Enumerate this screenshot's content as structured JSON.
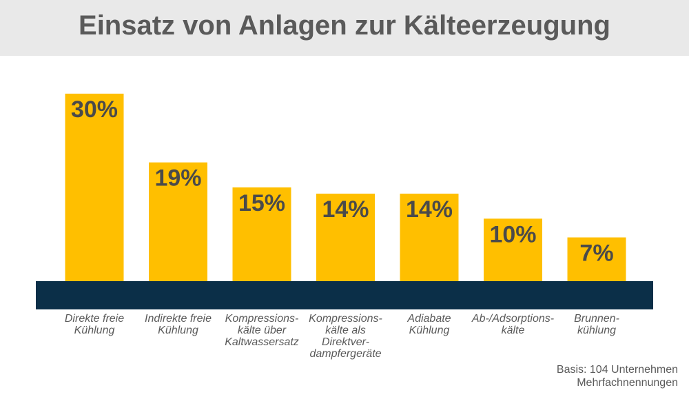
{
  "colors": {
    "bar": "#ffbf00",
    "baseline": "#0b2f48",
    "title_bg": "#e9e9e9",
    "text": "#5a5a5a",
    "value_text": "#4a4a4a"
  },
  "chart_data": {
    "type": "bar",
    "title": "Einsatz von Anlagen zur Kälteerzeugung",
    "categories": [
      [
        "Direkte freie",
        "Kühlung"
      ],
      [
        "Indirekte freie",
        "Kühlung"
      ],
      [
        "Kompressions-",
        "kälte über",
        "Kaltwassersatz"
      ],
      [
        "Kompressions-",
        "kälte als",
        "Direktver-",
        "dampfergeräte"
      ],
      [
        "Adiabate",
        "Kühlung"
      ],
      [
        "Ab-/Adsorptions-",
        "kälte"
      ],
      [
        "Brunnen-",
        "kühlung"
      ]
    ],
    "values": [
      30,
      19,
      15,
      14,
      14,
      10,
      7
    ],
    "value_labels": [
      "30%",
      "19%",
      "15%",
      "14%",
      "14%",
      "10%",
      "7%"
    ],
    "unit": "%",
    "grid": false
  },
  "footer": {
    "basis": "Basis: 104 Unternehmen",
    "note": "Mehrfachnennungen"
  }
}
